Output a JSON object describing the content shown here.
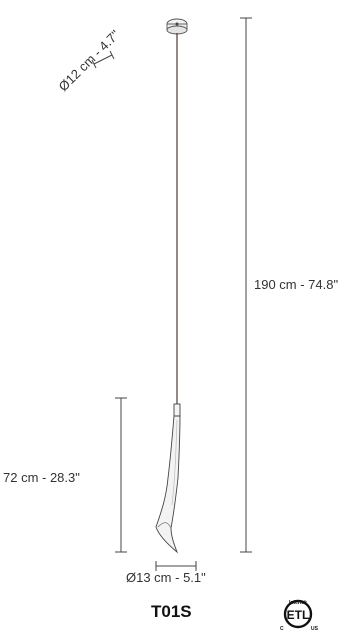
{
  "dimensions": {
    "canopy_diameter": "Ø12 cm - 4.7\"",
    "total_height": "190 cm - 74.8\"",
    "shade_height": "72 cm - 28.3\"",
    "shade_diameter": "Ø13 cm - 5.1\""
  },
  "model": {
    "code": "T01S"
  },
  "certification": {
    "mark": "ETL",
    "left_letter": "C",
    "right_letters": "US",
    "ring_text": "Intertek"
  }
}
